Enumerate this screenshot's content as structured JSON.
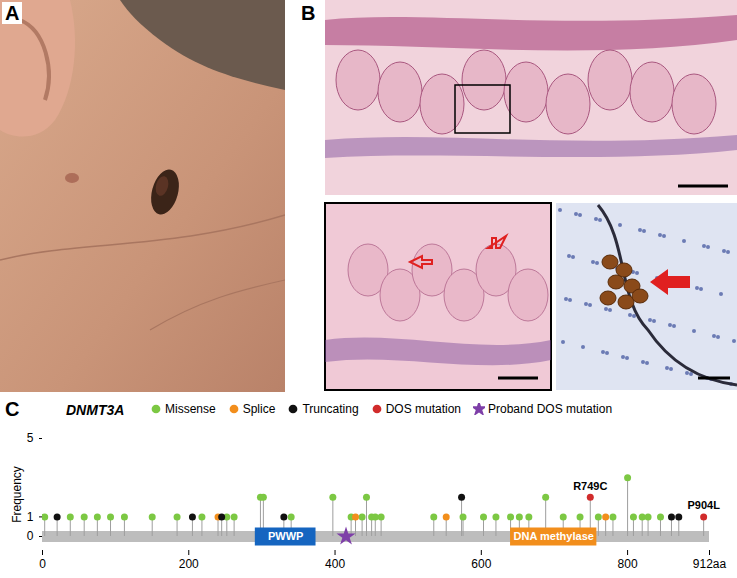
{
  "panels": [
    {
      "label": "A"
    },
    {
      "label": "B"
    }
  ],
  "chart_data": {
    "type": "lollipop",
    "panel_label": "C",
    "title": "DNMT3A",
    "y_label": "Frequency",
    "xlim": [
      0,
      912
    ],
    "xticks": [
      0,
      200,
      400,
      600,
      800,
      {
        "value": 912,
        "label": "912aa"
      }
    ],
    "ylim": [
      0,
      5
    ],
    "yticks": [
      0,
      1,
      5
    ],
    "legend": "top",
    "domains": [
      {
        "name": "PWWP",
        "start": 291,
        "end": 374,
        "color": "#1565c0"
      },
      {
        "name": "DNA methylase",
        "start": 640,
        "end": 758,
        "color": "#f28e1c"
      }
    ],
    "series": [
      {
        "name": "Missense",
        "color": "#7cc843",
        "marker": "circle",
        "x": [
          3,
          38,
          57,
          75,
          93,
          112,
          150,
          184,
          218,
          252,
          262,
          298,
          302,
          340,
          397,
          422,
          437,
          443,
          450,
          455,
          463,
          535,
          575,
          603,
          620,
          640,
          652,
          665,
          688,
          712,
          735,
          760,
          780,
          800,
          808,
          820,
          828,
          845
        ],
        "values": [
          1,
          1,
          1,
          1,
          1,
          1,
          1,
          1,
          1,
          1,
          1,
          2,
          2,
          1,
          2,
          1,
          1,
          2,
          1,
          1,
          1,
          1,
          1,
          1,
          1,
          1,
          1,
          1,
          2,
          1,
          1,
          1,
          1,
          3,
          1,
          1,
          1,
          1
        ]
      },
      {
        "name": "Splice",
        "color": "#f28e1c",
        "marker": "circle",
        "x": [
          240,
          428,
          552,
          770
        ],
        "values": [
          1,
          1,
          1,
          1
        ]
      },
      {
        "name": "Truncating",
        "color": "#111111",
        "marker": "circle",
        "x": [
          20,
          205,
          245,
          330,
          573,
          860,
          870
        ],
        "values": [
          1,
          1,
          1,
          1,
          2,
          1,
          1
        ]
      },
      {
        "name": "DOS mutation",
        "color": "#d12b2b",
        "marker": "circle",
        "x": [
          749,
          904
        ],
        "values": [
          2,
          1
        ],
        "labels": [
          "R749C",
          "P904L"
        ]
      },
      {
        "name": "Proband DOS mutation",
        "color": "#7e3fa8",
        "marker": "star",
        "x": [
          415
        ],
        "values": [
          0
        ]
      }
    ]
  }
}
